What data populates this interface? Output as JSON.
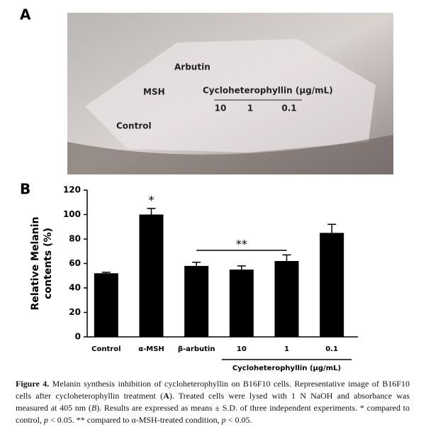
{
  "panel_a": {
    "label": "A",
    "labels": [
      "Arbutin",
      "MSH",
      "Cycloheterophyllin (μg/mL)",
      "10",
      "1",
      "0.1",
      "Control"
    ]
  },
  "panel_b_label": "B",
  "chart_data": {
    "type": "bar",
    "ylabel_lines": [
      "Relative Melanin",
      "contents (%)"
    ],
    "categories": [
      "Control",
      "α-MSH",
      "β-arbutin",
      "10",
      "1",
      "0.1"
    ],
    "values": [
      52,
      100,
      58,
      55,
      62,
      85
    ],
    "errors": [
      0.8,
      5,
      3,
      3,
      5,
      7
    ],
    "color": "#000000",
    "ylim": [
      0,
      120
    ],
    "yticks": [
      0,
      20,
      40,
      60,
      80,
      100,
      120
    ],
    "grid": false,
    "annotations": [
      "*",
      "**"
    ],
    "group_label": "Cycloheterophyllin (μg/mL)"
  },
  "caption": {
    "label": "Figure 4.",
    "segments": [
      " Melanin synthesis inhibition of cycloheterophyllin on B16F10 cells. Representative image of B16F10 cells after cycloheterophyllin treatment (",
      "A",
      "). Treated cells were lysed with 1 N NaOH and absorbance was measured at 405 nm (",
      "B",
      "). Results are expressed as means ± S.D. of three independent experiments. * compared to control, ",
      "p",
      " < 0.05. ** compared to α-MSH-treated condition, ",
      "p",
      " < 0.05."
    ]
  }
}
